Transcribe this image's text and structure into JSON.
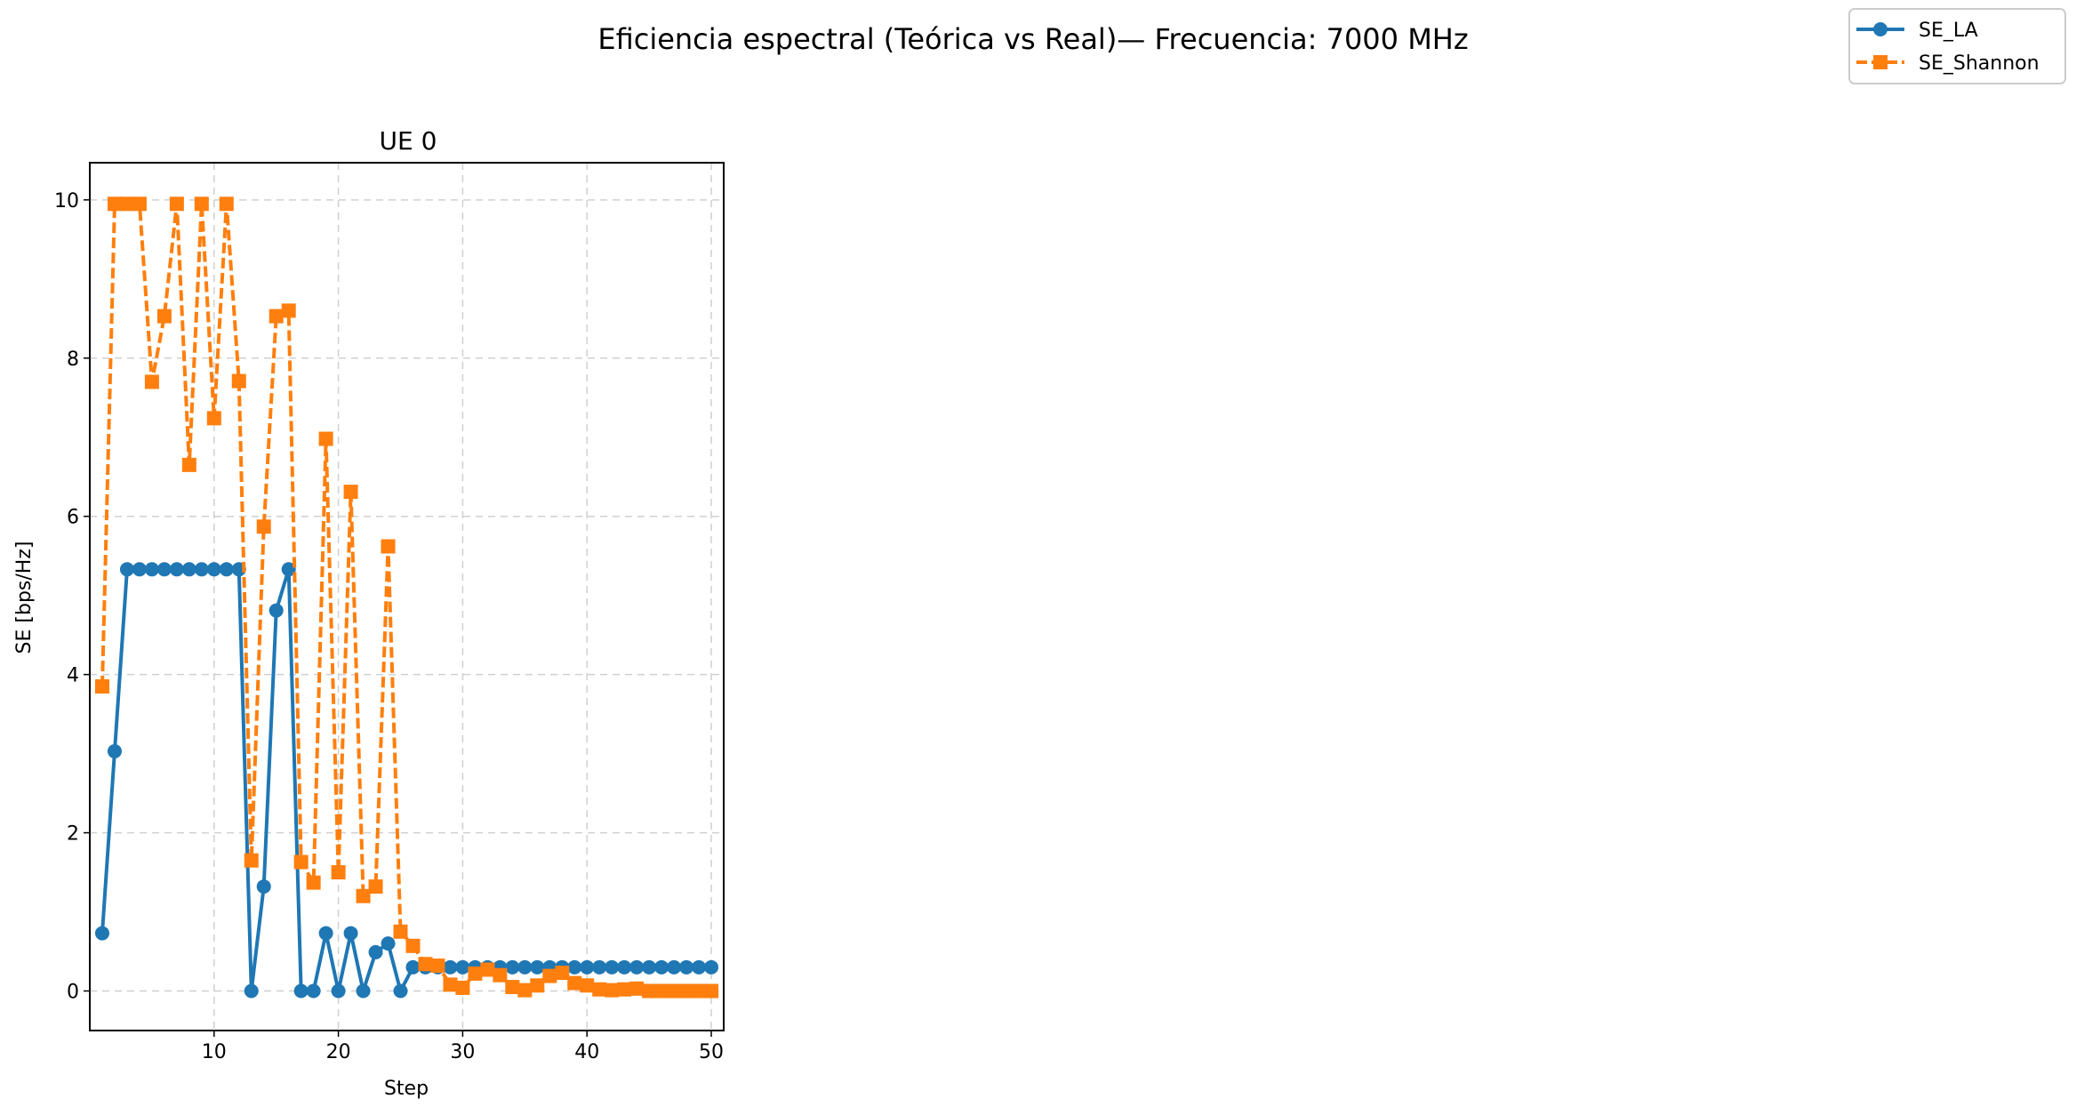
{
  "figure": {
    "suptitle": "Eficiencia espectral (Teórica vs Real)— Frecuencia: 7000 MHz"
  },
  "chart_data": {
    "type": "line",
    "title": "UE 0",
    "xlabel": "Step",
    "ylabel": "SE [bps/Hz]",
    "xlim": [
      0,
      51
    ],
    "ylim": [
      -0.5,
      10.47
    ],
    "xticks": [
      10,
      20,
      30,
      40,
      50
    ],
    "yticks": [
      0,
      2,
      4,
      6,
      8,
      10
    ],
    "grid": true,
    "legend_position": "top-right (figure)",
    "x": [
      1,
      2,
      3,
      4,
      5,
      6,
      7,
      8,
      9,
      10,
      11,
      12,
      13,
      14,
      15,
      16,
      17,
      18,
      19,
      20,
      21,
      22,
      23,
      24,
      25,
      26,
      27,
      28,
      29,
      30,
      31,
      32,
      33,
      34,
      35,
      36,
      37,
      38,
      39,
      40,
      41,
      42,
      43,
      44,
      45,
      46,
      47,
      48,
      49,
      50
    ],
    "series": [
      {
        "name": "SE_LA",
        "color": "#1f77b4",
        "style": "solid",
        "marker": "circle",
        "values": [
          0.73,
          3.03,
          5.33,
          5.33,
          5.33,
          5.33,
          5.33,
          5.33,
          5.33,
          5.33,
          5.33,
          5.33,
          0.0,
          1.32,
          4.81,
          5.33,
          0.0,
          0.0,
          0.73,
          0.0,
          0.73,
          0.0,
          0.49,
          0.6,
          0.0,
          0.3,
          0.3,
          0.3,
          0.3,
          0.3,
          0.3,
          0.3,
          0.3,
          0.3,
          0.3,
          0.3,
          0.3,
          0.3,
          0.3,
          0.3,
          0.3,
          0.3,
          0.3,
          0.3,
          0.3,
          0.3,
          0.3,
          0.3,
          0.3,
          0.3
        ]
      },
      {
        "name": "SE_Shannon",
        "color": "#ff7f0e",
        "style": "dashed",
        "marker": "square",
        "values": [
          3.85,
          9.95,
          9.95,
          9.95,
          7.7,
          8.53,
          9.95,
          6.65,
          9.95,
          7.24,
          9.95,
          7.71,
          1.65,
          5.87,
          8.53,
          8.6,
          1.63,
          1.37,
          6.98,
          1.5,
          6.31,
          1.2,
          1.32,
          5.62,
          0.75,
          0.57,
          0.34,
          0.32,
          0.08,
          0.04,
          0.22,
          0.27,
          0.2,
          0.05,
          0.01,
          0.07,
          0.19,
          0.23,
          0.1,
          0.07,
          0.02,
          0.01,
          0.02,
          0.03,
          0.0,
          0.0,
          0.0,
          0.0,
          0.0,
          0.0
        ]
      }
    ]
  }
}
